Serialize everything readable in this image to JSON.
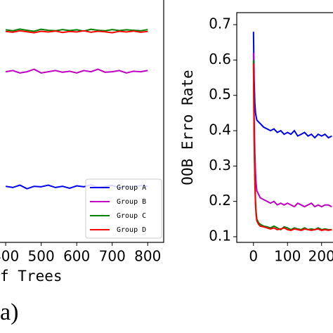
{
  "chart_data": [
    {
      "type": "line",
      "xlabel": "f Trees",
      "x": [
        400,
        420,
        440,
        460,
        480,
        500,
        520,
        540,
        560,
        580,
        600,
        620,
        640,
        660,
        680,
        700,
        720,
        740,
        760,
        780,
        800
      ],
      "xlim": [
        380,
        845
      ],
      "xticks": [
        400,
        500,
        600,
        700,
        800
      ],
      "ylim": [
        0,
        1
      ],
      "legend": "lower right",
      "series": [
        {
          "name": "Group A",
          "color": "#0000ee",
          "values": [
            0.23,
            0.225,
            0.235,
            0.22,
            0.23,
            0.228,
            0.235,
            0.225,
            0.23,
            0.222,
            0.232,
            0.228,
            0.236,
            0.226,
            0.23,
            0.234,
            0.224,
            0.23,
            0.228,
            0.233,
            0.23
          ]
        },
        {
          "name": "Group B",
          "color": "#c000c0",
          "values": [
            0.7,
            0.705,
            0.695,
            0.7,
            0.71,
            0.695,
            0.7,
            0.705,
            0.698,
            0.702,
            0.695,
            0.705,
            0.7,
            0.71,
            0.698,
            0.7,
            0.705,
            0.695,
            0.702,
            0.7,
            0.705
          ]
        },
        {
          "name": "Group C",
          "color": "#008000",
          "values": [
            0.872,
            0.868,
            0.875,
            0.87,
            0.866,
            0.874,
            0.87,
            0.868,
            0.873,
            0.869,
            0.872,
            0.867,
            0.874,
            0.87,
            0.868,
            0.873,
            0.869,
            0.872,
            0.87,
            0.868,
            0.873
          ]
        },
        {
          "name": "Group D",
          "color": "#ff0000",
          "values": [
            0.865,
            0.862,
            0.868,
            0.864,
            0.86,
            0.866,
            0.863,
            0.867,
            0.861,
            0.865,
            0.863,
            0.868,
            0.862,
            0.866,
            0.864,
            0.86,
            0.866,
            0.863,
            0.867,
            0.862,
            0.865
          ]
        }
      ]
    },
    {
      "type": "line",
      "ylabel": "OOB Erro Rate",
      "x": [
        0,
        2,
        4,
        6,
        8,
        10,
        15,
        20,
        30,
        40,
        50,
        60,
        70,
        80,
        90,
        100,
        110,
        120,
        130,
        140,
        150,
        160,
        170,
        180,
        190,
        200,
        210,
        220,
        230
      ],
      "xlim": [
        -49,
        250
      ],
      "xticks": [
        0,
        100,
        200
      ],
      "ylim": [
        0.084,
        0.734
      ],
      "yticks": [
        0.1,
        0.2,
        0.3,
        0.4,
        0.5,
        0.6,
        0.7
      ],
      "series": [
        {
          "name": "Group A",
          "color": "#0000ee",
          "values": [
            0.68,
            0.55,
            0.48,
            0.45,
            0.44,
            0.43,
            0.425,
            0.42,
            0.41,
            0.405,
            0.4,
            0.405,
            0.395,
            0.4,
            0.39,
            0.395,
            0.39,
            0.4,
            0.385,
            0.39,
            0.395,
            0.385,
            0.39,
            0.38,
            0.39,
            0.385,
            0.39,
            0.38,
            0.385
          ]
        },
        {
          "name": "Group B",
          "color": "#c000c0",
          "values": [
            0.62,
            0.45,
            0.34,
            0.28,
            0.25,
            0.23,
            0.22,
            0.21,
            0.205,
            0.2,
            0.195,
            0.2,
            0.19,
            0.195,
            0.19,
            0.195,
            0.19,
            0.185,
            0.195,
            0.19,
            0.185,
            0.19,
            0.195,
            0.185,
            0.19,
            0.185,
            0.19,
            0.19,
            0.185
          ]
        },
        {
          "name": "Group C",
          "color": "#008000",
          "values": [
            0.6,
            0.4,
            0.28,
            0.2,
            0.17,
            0.15,
            0.14,
            0.135,
            0.13,
            0.128,
            0.125,
            0.13,
            0.125,
            0.12,
            0.128,
            0.125,
            0.12,
            0.125,
            0.122,
            0.12,
            0.125,
            0.12,
            0.122,
            0.12,
            0.125,
            0.12,
            0.122,
            0.12,
            0.12
          ]
        },
        {
          "name": "Group D",
          "color": "#ff0000",
          "values": [
            0.59,
            0.38,
            0.26,
            0.19,
            0.16,
            0.145,
            0.135,
            0.13,
            0.128,
            0.125,
            0.122,
            0.125,
            0.12,
            0.122,
            0.125,
            0.12,
            0.118,
            0.122,
            0.12,
            0.118,
            0.122,
            0.12,
            0.118,
            0.12,
            0.122,
            0.118,
            0.12,
            0.118,
            0.12
          ]
        }
      ]
    }
  ],
  "caption": "a)"
}
